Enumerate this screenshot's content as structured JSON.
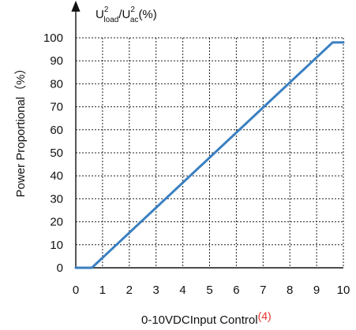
{
  "chart_data": {
    "type": "line",
    "title": "",
    "y_axis_label": {
      "u1": "U",
      "sup1": "2",
      "sub1": "load",
      "slash": "/U",
      "sup2": "2",
      "sub2": "ac",
      "tail": "(%)"
    },
    "side_label": "Power Proportional（%）",
    "xlabel": "0-10VDCInput Control",
    "xlabel_note": "(4)",
    "xlim": [
      0,
      10
    ],
    "ylim": [
      0,
      100
    ],
    "x_ticks": [
      "0",
      "1",
      "2",
      "3",
      "4",
      "5",
      "6",
      "7",
      "8",
      "9",
      "10"
    ],
    "y_ticks": [
      "0",
      "10",
      "20",
      "30",
      "40",
      "50",
      "60",
      "70",
      "80",
      "90",
      "100"
    ],
    "grid": true,
    "series": [
      {
        "color": "#3a7fc1",
        "x": [
          0,
          0.6,
          9.6,
          10
        ],
        "y": [
          0,
          0,
          98,
          98
        ]
      }
    ]
  }
}
